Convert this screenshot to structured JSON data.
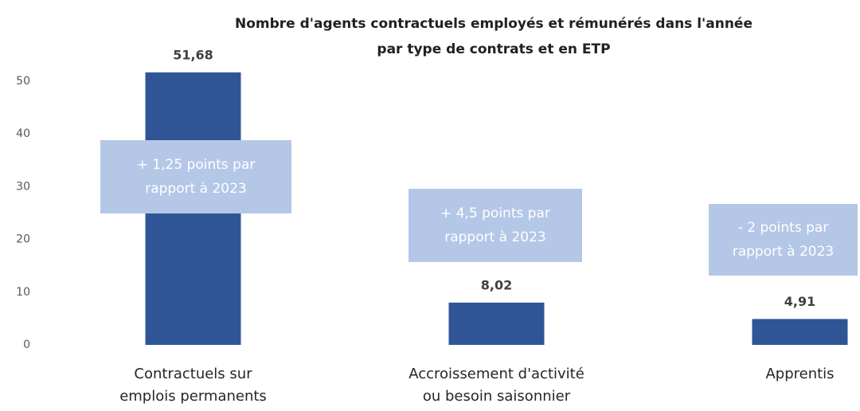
{
  "chart_data": {
    "type": "bar",
    "title": [
      "Nombre d'agents contractuels employés et rémunérés dans l'année",
      "par type de contrats et en ETP"
    ],
    "categories": [
      [
        "Contractuels sur",
        "emplois permanents"
      ],
      [
        "Accroissement d'activité",
        "ou besoin saisonnier"
      ],
      [
        "Apprentis"
      ]
    ],
    "values": [
      51.68,
      8.02,
      4.91
    ],
    "value_labels": [
      "51,68",
      "8,02",
      "4,91"
    ],
    "color": "#2f5597",
    "annotations": [
      [
        "+ 1,25 points par",
        "rapport à 2023"
      ],
      [
        "+ 4,5 points par",
        "rapport à 2023"
      ],
      [
        "- 2 points par",
        "rapport à 2023"
      ]
    ],
    "annotation_color": "#b4c7e7",
    "ylim": [
      0,
      50
    ],
    "yticks": [
      0,
      10,
      20,
      30,
      40,
      50
    ],
    "grid": false
  }
}
